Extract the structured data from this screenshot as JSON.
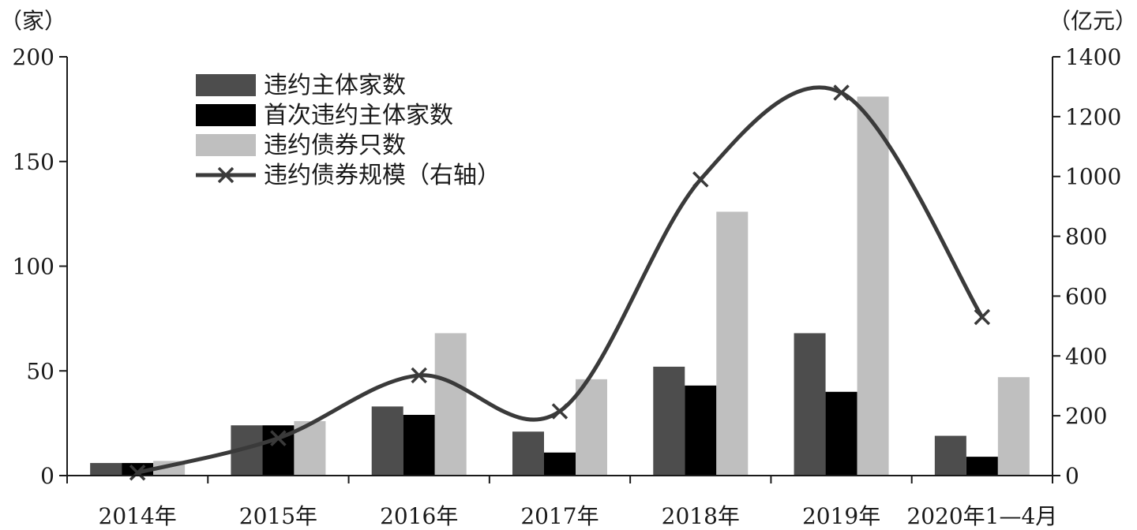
{
  "chart_data": {
    "type": "bar",
    "categories": [
      "2014年",
      "2015年",
      "2016年",
      "2017年",
      "2018年",
      "2019年",
      "2020年1—4月"
    ],
    "left_axis": {
      "unit_label": "（家）",
      "ylim": [
        0,
        200
      ],
      "ticks": [
        "0",
        "50",
        "100",
        "150",
        "200"
      ]
    },
    "right_axis": {
      "unit_label": "（亿元）",
      "ylim": [
        0,
        1400
      ],
      "ticks": [
        "0",
        "200",
        "400",
        "600",
        "800",
        "1000",
        "1200",
        "1400"
      ]
    },
    "series": [
      {
        "name": "违约主体家数",
        "type": "bar",
        "axis": "left",
        "color": "#4d4d4d",
        "values": [
          6,
          24,
          33,
          21,
          52,
          68,
          19
        ]
      },
      {
        "name": "首次违约主体家数",
        "type": "bar",
        "axis": "left",
        "color": "#000000",
        "values": [
          6,
          24,
          29,
          11,
          43,
          40,
          9
        ]
      },
      {
        "name": "违约债券只数",
        "type": "bar",
        "axis": "left",
        "color": "#bfbfbf",
        "values": [
          7,
          26,
          68,
          46,
          126,
          181,
          47
        ]
      },
      {
        "name": "违约债券规模（右轴）",
        "type": "line",
        "axis": "right",
        "color": "#3a3a3a",
        "marker": "x",
        "values": [
          10,
          125,
          335,
          215,
          990,
          1280,
          530
        ]
      }
    ],
    "legend_position": "top-left",
    "grid": false
  }
}
